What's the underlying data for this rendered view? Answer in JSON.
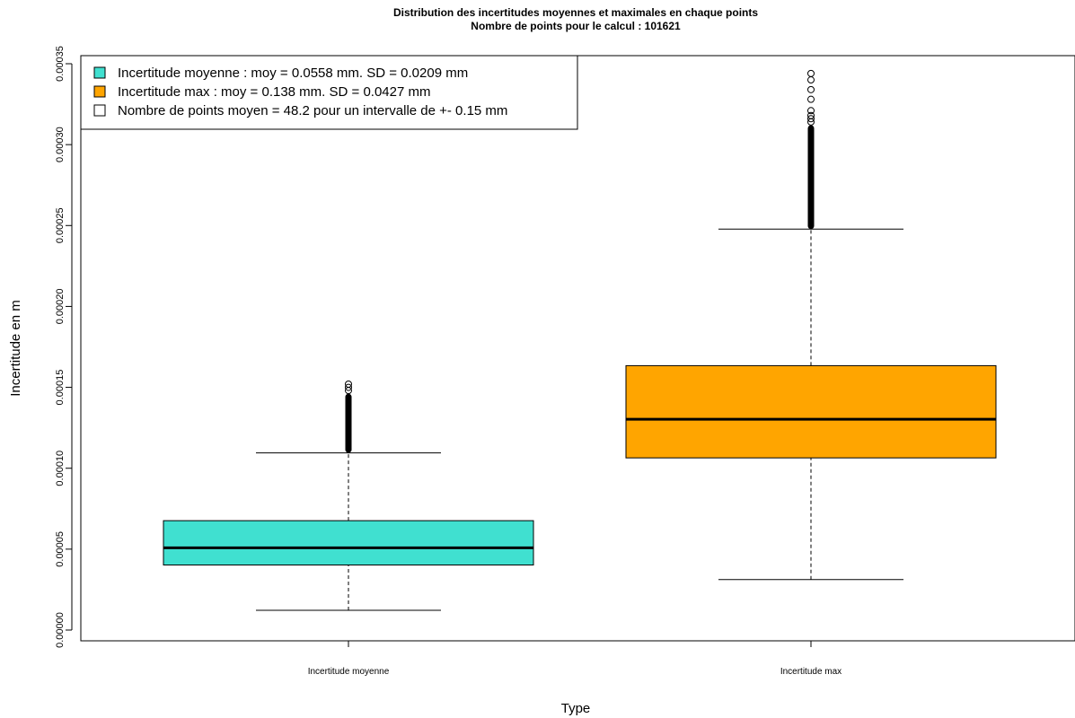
{
  "chart_data": {
    "type": "boxplot",
    "title": "Distribution des incertitudes moyennes et maximales en chaque points",
    "subtitle": "Nombre de points pour le calcul : 101621",
    "xlabel": "Type",
    "ylabel": "Incertitude en m",
    "ylim": [
      0,
      0.00035
    ],
    "yticks": [
      "0.00000",
      "0.00005",
      "0.00010",
      "0.00015",
      "0.00020",
      "0.00025",
      "0.00030",
      "0.00035"
    ],
    "grid": false,
    "legend_position": "top-left",
    "legend": [
      {
        "label": "Incertitude moyenne : moy =  0.0558 mm. SD =  0.0209  mm",
        "color": "#40E0D0"
      },
      {
        "label": "Incertitude max : moy =  0.138 mm. SD =  0.0427  mm",
        "color": "#FFA500"
      },
      {
        "label": " Nombre de points moyen =  48.2  pour un intervalle de +-  0.15  mm",
        "color": "#FFFFFF"
      }
    ],
    "categories": [
      "Incertitude moyenne",
      "Incertitude max"
    ],
    "boxes": [
      {
        "category": "Incertitude moyenne",
        "color": "#40E0D0",
        "whisker_low": 1.22e-05,
        "q1": 4.02e-05,
        "median": 5.08e-05,
        "q3": 6.76e-05,
        "whisker_high": 0.0001095,
        "outliers_dense_from": 0.0001095,
        "outliers_dense_to": 0.000146,
        "outliers": [
          0.000148,
          0.00015,
          0.000152
        ]
      },
      {
        "category": "Incertitude max",
        "color": "#FFA500",
        "whisker_low": 3.12e-05,
        "q1": 0.0001064,
        "median": 0.0001303,
        "q3": 0.0001634,
        "whisker_high": 0.0002478,
        "outliers_dense_from": 0.0002478,
        "outliers_dense_to": 0.000312,
        "outliers": [
          0.000314,
          0.000316,
          0.000318,
          0.000321,
          0.000328,
          0.000334,
          0.00034,
          0.000344
        ]
      }
    ]
  }
}
